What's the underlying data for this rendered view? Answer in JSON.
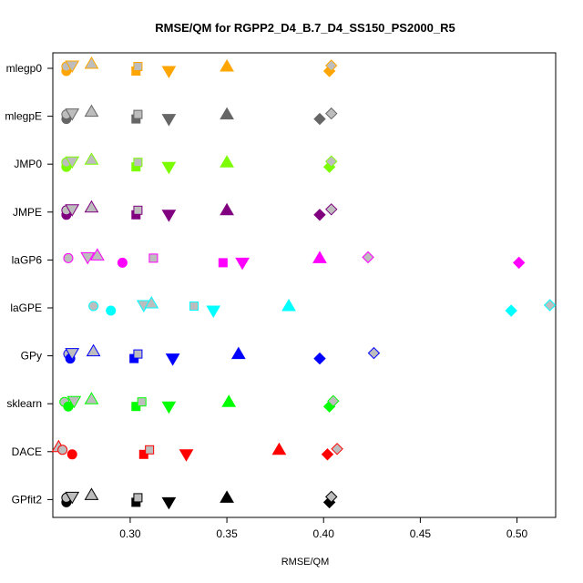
{
  "chart_data": {
    "type": "scatter",
    "title": "RMSE/QM for RGPP2_D4_B.7_D4_SS150_PS2000_R5",
    "xlabel": "RMSE/QM",
    "ylabel": "",
    "xlim": [
      0.26,
      0.52
    ],
    "x_ticks": [
      "0.30",
      "0.35",
      "0.40",
      "0.45",
      "0.50"
    ],
    "x_tick_values": [
      0.3,
      0.35,
      0.4,
      0.45,
      0.5
    ],
    "grid": false,
    "categories": [
      "mlegp0",
      "mlegpE",
      "JMP0",
      "JMPE",
      "laGP6",
      "laGPE",
      "GPy",
      "sklearn",
      "DACE",
      "GPfit2"
    ],
    "colors": {
      "mlegp0": "#FFA500",
      "mlegpE": "#666666",
      "JMP0": "#7CFC00",
      "JMPE": "#800080",
      "laGP6": "#FF00FF",
      "laGPE": "#00FFFF",
      "GPy": "#0000FF",
      "sklearn": "#00FF00",
      "DACE": "#FF0000",
      "GPfit2": "#000000"
    },
    "series": [
      {
        "category": "mlegp0",
        "points": [
          {
            "shape": "circle",
            "x": 0.267,
            "filled": true
          },
          {
            "shape": "circle",
            "x": 0.267,
            "filled": false
          },
          {
            "shape": "triangle-down",
            "x": 0.27,
            "filled": false
          },
          {
            "shape": "triangle-up",
            "x": 0.28,
            "filled": false
          },
          {
            "shape": "square",
            "x": 0.303,
            "filled": true
          },
          {
            "shape": "square",
            "x": 0.304,
            "filled": false
          },
          {
            "shape": "triangle-down",
            "x": 0.32,
            "filled": true
          },
          {
            "shape": "triangle-up",
            "x": 0.35,
            "filled": true
          },
          {
            "shape": "diamond",
            "x": 0.403,
            "filled": true
          },
          {
            "shape": "diamond",
            "x": 0.404,
            "filled": false
          }
        ]
      },
      {
        "category": "mlegpE",
        "points": [
          {
            "shape": "circle",
            "x": 0.267,
            "filled": true
          },
          {
            "shape": "circle",
            "x": 0.267,
            "filled": false
          },
          {
            "shape": "triangle-down",
            "x": 0.27,
            "filled": false
          },
          {
            "shape": "triangle-up",
            "x": 0.28,
            "filled": false
          },
          {
            "shape": "square",
            "x": 0.303,
            "filled": true
          },
          {
            "shape": "square",
            "x": 0.304,
            "filled": false
          },
          {
            "shape": "triangle-down",
            "x": 0.32,
            "filled": true
          },
          {
            "shape": "triangle-up",
            "x": 0.35,
            "filled": true
          },
          {
            "shape": "diamond",
            "x": 0.398,
            "filled": true
          },
          {
            "shape": "diamond",
            "x": 0.404,
            "filled": false
          }
        ]
      },
      {
        "category": "JMP0",
        "points": [
          {
            "shape": "circle",
            "x": 0.267,
            "filled": true
          },
          {
            "shape": "circle",
            "x": 0.267,
            "filled": false
          },
          {
            "shape": "triangle-down",
            "x": 0.27,
            "filled": false
          },
          {
            "shape": "triangle-up",
            "x": 0.28,
            "filled": false
          },
          {
            "shape": "square",
            "x": 0.303,
            "filled": true
          },
          {
            "shape": "square",
            "x": 0.304,
            "filled": false
          },
          {
            "shape": "triangle-down",
            "x": 0.32,
            "filled": true
          },
          {
            "shape": "triangle-up",
            "x": 0.35,
            "filled": true
          },
          {
            "shape": "diamond",
            "x": 0.403,
            "filled": true
          },
          {
            "shape": "diamond",
            "x": 0.404,
            "filled": false
          }
        ]
      },
      {
        "category": "JMPE",
        "points": [
          {
            "shape": "circle",
            "x": 0.267,
            "filled": true
          },
          {
            "shape": "circle",
            "x": 0.267,
            "filled": false
          },
          {
            "shape": "triangle-down",
            "x": 0.27,
            "filled": false
          },
          {
            "shape": "triangle-up",
            "x": 0.28,
            "filled": false
          },
          {
            "shape": "square",
            "x": 0.303,
            "filled": true
          },
          {
            "shape": "square",
            "x": 0.304,
            "filled": false
          },
          {
            "shape": "triangle-down",
            "x": 0.32,
            "filled": true
          },
          {
            "shape": "triangle-up",
            "x": 0.35,
            "filled": true
          },
          {
            "shape": "diamond",
            "x": 0.398,
            "filled": true
          },
          {
            "shape": "diamond",
            "x": 0.404,
            "filled": false
          }
        ]
      },
      {
        "category": "laGP6",
        "points": [
          {
            "shape": "circle",
            "x": 0.268,
            "filled": false
          },
          {
            "shape": "triangle-up",
            "x": 0.283,
            "filled": false
          },
          {
            "shape": "triangle-down",
            "x": 0.278,
            "filled": false
          },
          {
            "shape": "circle",
            "x": 0.296,
            "filled": true
          },
          {
            "shape": "square",
            "x": 0.312,
            "filled": false
          },
          {
            "shape": "square",
            "x": 0.348,
            "filled": true
          },
          {
            "shape": "triangle-down",
            "x": 0.358,
            "filled": true
          },
          {
            "shape": "triangle-up",
            "x": 0.398,
            "filled": true
          },
          {
            "shape": "diamond",
            "x": 0.423,
            "filled": false
          },
          {
            "shape": "diamond",
            "x": 0.501,
            "filled": true
          }
        ]
      },
      {
        "category": "laGPE",
        "points": [
          {
            "shape": "circle",
            "x": 0.281,
            "filled": false
          },
          {
            "shape": "circle",
            "x": 0.29,
            "filled": true
          },
          {
            "shape": "triangle-down",
            "x": 0.307,
            "filled": false
          },
          {
            "shape": "triangle-up",
            "x": 0.311,
            "filled": false
          },
          {
            "shape": "square",
            "x": 0.333,
            "filled": false
          },
          {
            "shape": "triangle-down",
            "x": 0.343,
            "filled": true
          },
          {
            "shape": "triangle-up",
            "x": 0.382,
            "filled": true
          },
          {
            "shape": "diamond",
            "x": 0.497,
            "filled": true
          },
          {
            "shape": "diamond",
            "x": 0.517,
            "filled": false
          }
        ]
      },
      {
        "category": "GPy",
        "points": [
          {
            "shape": "circle",
            "x": 0.268,
            "filled": false
          },
          {
            "shape": "circle",
            "x": 0.269,
            "filled": true
          },
          {
            "shape": "triangle-down",
            "x": 0.27,
            "filled": false
          },
          {
            "shape": "triangle-up",
            "x": 0.281,
            "filled": false
          },
          {
            "shape": "square",
            "x": 0.302,
            "filled": true
          },
          {
            "shape": "square",
            "x": 0.304,
            "filled": false
          },
          {
            "shape": "triangle-down",
            "x": 0.322,
            "filled": true
          },
          {
            "shape": "triangle-up",
            "x": 0.356,
            "filled": true
          },
          {
            "shape": "diamond",
            "x": 0.398,
            "filled": true
          },
          {
            "shape": "diamond",
            "x": 0.426,
            "filled": false
          }
        ]
      },
      {
        "category": "sklearn",
        "points": [
          {
            "shape": "circle",
            "x": 0.266,
            "filled": false
          },
          {
            "shape": "circle",
            "x": 0.268,
            "filled": true
          },
          {
            "shape": "triangle-down",
            "x": 0.271,
            "filled": false
          },
          {
            "shape": "triangle-up",
            "x": 0.28,
            "filled": false
          },
          {
            "shape": "square",
            "x": 0.303,
            "filled": true
          },
          {
            "shape": "square",
            "x": 0.306,
            "filled": false
          },
          {
            "shape": "triangle-down",
            "x": 0.32,
            "filled": true
          },
          {
            "shape": "triangle-up",
            "x": 0.351,
            "filled": true
          },
          {
            "shape": "diamond",
            "x": 0.403,
            "filled": true
          },
          {
            "shape": "diamond",
            "x": 0.405,
            "filled": false
          }
        ]
      },
      {
        "category": "DACE",
        "points": [
          {
            "shape": "triangle-up",
            "x": 0.263,
            "filled": false
          },
          {
            "shape": "circle",
            "x": 0.265,
            "filled": false
          },
          {
            "shape": "circle",
            "x": 0.27,
            "filled": true
          },
          {
            "shape": "square",
            "x": 0.307,
            "filled": true
          },
          {
            "shape": "square",
            "x": 0.31,
            "filled": false
          },
          {
            "shape": "triangle-down",
            "x": 0.329,
            "filled": true
          },
          {
            "shape": "triangle-up",
            "x": 0.377,
            "filled": true
          },
          {
            "shape": "diamond",
            "x": 0.402,
            "filled": true
          },
          {
            "shape": "diamond",
            "x": 0.407,
            "filled": false
          }
        ]
      },
      {
        "category": "GPfit2",
        "points": [
          {
            "shape": "circle",
            "x": 0.267,
            "filled": true
          },
          {
            "shape": "circle",
            "x": 0.267,
            "filled": false
          },
          {
            "shape": "triangle-down",
            "x": 0.27,
            "filled": false
          },
          {
            "shape": "triangle-up",
            "x": 0.28,
            "filled": false
          },
          {
            "shape": "square",
            "x": 0.303,
            "filled": true
          },
          {
            "shape": "square",
            "x": 0.304,
            "filled": false
          },
          {
            "shape": "triangle-down",
            "x": 0.32,
            "filled": true
          },
          {
            "shape": "triangle-up",
            "x": 0.35,
            "filled": true
          },
          {
            "shape": "diamond",
            "x": 0.403,
            "filled": true
          },
          {
            "shape": "diamond",
            "x": 0.404,
            "filled": false
          }
        ]
      }
    ]
  }
}
